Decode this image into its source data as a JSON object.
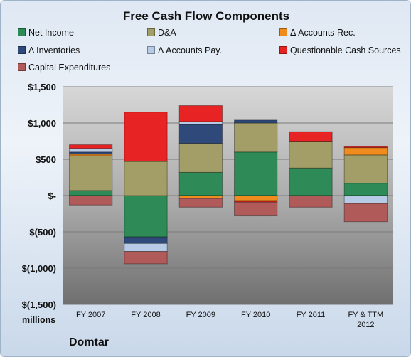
{
  "colors": {
    "net_income": "#2e8b57",
    "da": "#a39e68",
    "accounts_rec": "#f08c1e",
    "inventories": "#2f4a7a",
    "accounts_pay": "#b7cbe6",
    "questionable": "#e82323",
    "capex": "#b05a5a"
  },
  "chart_data": {
    "type": "bar",
    "stacked": true,
    "title": "Free Cash Flow Components",
    "ylabel": "millions",
    "ylim": [
      -1500,
      1500
    ],
    "yticks": [
      1500,
      1000,
      500,
      0,
      -500,
      -1000,
      -1500
    ],
    "ytick_labels": [
      "$1,500",
      "$1,000",
      "$500",
      "$-",
      "$(500)",
      "$(1,000)",
      "$(1,500)"
    ],
    "categories": [
      "FY 2007",
      "FY 2008",
      "FY 2009",
      "FY 2010",
      "FY 2011",
      "FY & TTM 2012"
    ],
    "legend_position": "top",
    "grid": true,
    "series": [
      {
        "name": "Net Income",
        "key": "net_income",
        "values": [
          70,
          -570,
          320,
          600,
          380,
          170
        ]
      },
      {
        "name": "D&A",
        "key": "da",
        "values": [
          480,
          470,
          400,
          400,
          370,
          390
        ]
      },
      {
        "name": "Δ Accounts Rec.",
        "key": "accounts_rec",
        "values": [
          20,
          0,
          -40,
          -70,
          0,
          100
        ]
      },
      {
        "name": "Δ Inventories",
        "key": "inventories",
        "values": [
          30,
          -90,
          260,
          40,
          0,
          0
        ]
      },
      {
        "name": "Δ Accounts Pay.",
        "key": "accounts_pay",
        "values": [
          50,
          -110,
          40,
          0,
          0,
          -110
        ]
      },
      {
        "name": "Questionable Cash Sources",
        "key": "questionable",
        "values": [
          50,
          680,
          220,
          -20,
          130,
          15
        ]
      },
      {
        "name": "Capital Expenditures",
        "key": "capex",
        "values": [
          -130,
          -170,
          -120,
          -190,
          -160,
          -250
        ]
      }
    ]
  },
  "footer": {
    "units": "millions",
    "company": "Domtar"
  }
}
